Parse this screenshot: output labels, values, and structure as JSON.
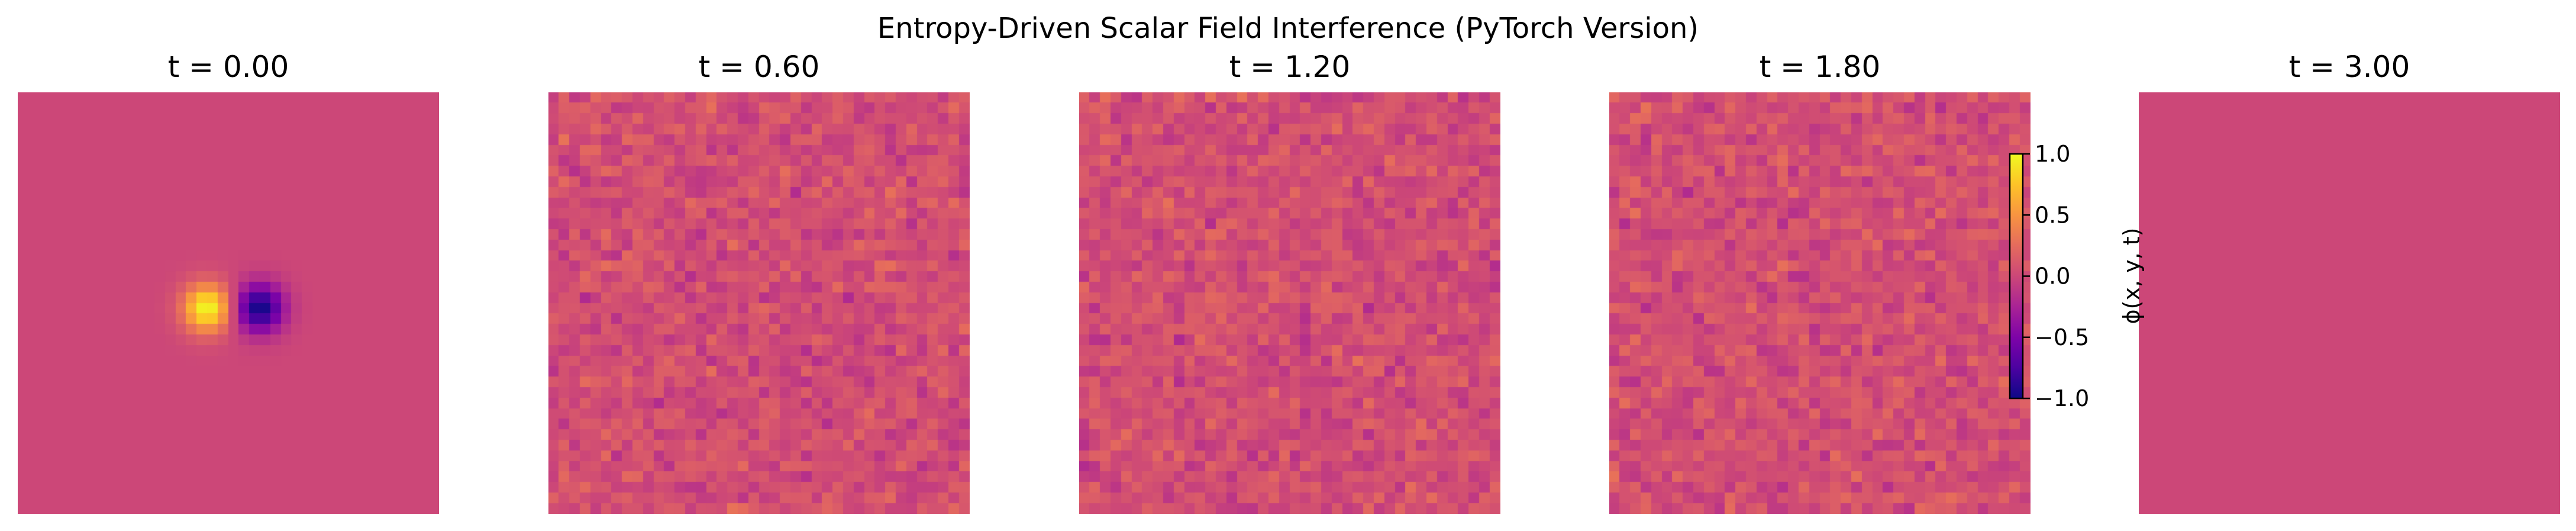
{
  "title": "Entropy-Driven Scalar Field Interference (PyTorch Version)",
  "chart_data": {
    "type": "heatmap",
    "colormap": "plasma",
    "grid_size": [
      40,
      40
    ],
    "panels": [
      {
        "title": "t = 0.00",
        "t": 0.0,
        "field": "gaussian dipole: positive lobe (~+1.0) left of center, negative lobe (~-1.0) right of center at row ~20",
        "background_value": 0.0
      },
      {
        "title": "t = 0.60",
        "t": 0.6,
        "field": "noise",
        "mean": 0.05,
        "std": 0.09
      },
      {
        "title": "t = 1.20",
        "t": 1.2,
        "field": "noise",
        "mean": 0.05,
        "std": 0.09
      },
      {
        "title": "t = 1.80",
        "t": 1.8,
        "field": "noise",
        "mean": 0.05,
        "std": 0.09
      },
      {
        "title": "t = 3.00",
        "t": 3.0,
        "field": "uniform",
        "value": 0.0
      }
    ],
    "colorbar": {
      "label": "ϕ(x, y, t)",
      "range": [
        -1.0,
        1.0
      ],
      "ticks": [
        1.0,
        0.5,
        0.0,
        -0.5,
        -1.0
      ],
      "tick_labels": [
        "1.0",
        "0.5",
        "0.0",
        "−0.5",
        "−1.0"
      ]
    },
    "axes_visible": false
  }
}
